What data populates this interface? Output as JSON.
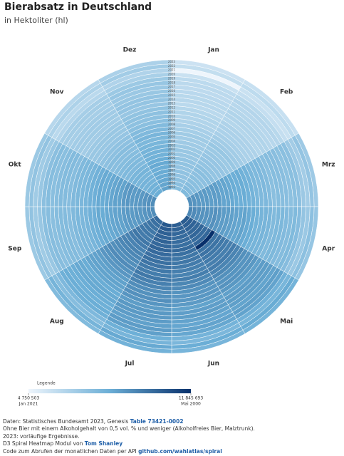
{
  "chart_data": {
    "type": "spiral-heatmap",
    "title": "Bierabsatz in Deutschland",
    "subtitle": "in Hektoliter (hl)",
    "months": [
      "Jan",
      "Feb",
      "Mrz",
      "Apr",
      "Mai",
      "Jun",
      "Jul",
      "Aug",
      "Sep",
      "Okt",
      "Nov",
      "Dez"
    ],
    "years": [
      "1993",
      "1994",
      "1995",
      "1996",
      "1997",
      "1998",
      "1999",
      "2000",
      "2001",
      "2002",
      "2003",
      "2004",
      "2005",
      "2006",
      "2007",
      "2008",
      "2009",
      "2010",
      "2011",
      "2012",
      "2013",
      "2014",
      "2015",
      "2016",
      "2017",
      "2018",
      "2019",
      "2020",
      "2021",
      "2022",
      "2023"
    ],
    "values": [
      [
        7520000,
        7710000,
        9120000,
        9400000,
        10620000,
        10530000,
        10720000,
        10150000,
        9210000,
        9210000,
        8270000,
        8650000
      ],
      [
        7440000,
        7630000,
        9020000,
        9300000,
        10510000,
        10420000,
        10600000,
        10040000,
        9110000,
        9110000,
        8180000,
        8560000
      ],
      [
        7360000,
        7540000,
        8920000,
        9200000,
        10400000,
        10300000,
        10490000,
        9940000,
        9020000,
        9020000,
        8100000,
        8460000
      ],
      [
        7280000,
        7460000,
        8830000,
        9100000,
        10280000,
        10190000,
        10370000,
        9830000,
        8920000,
        8920000,
        8010000,
        8370000
      ],
      [
        7300000,
        7420000,
        8860000,
        9050000,
        10330000,
        10150000,
        10410000,
        9800000,
        8950000,
        8900000,
        8030000,
        8350000
      ],
      [
        7200000,
        7380000,
        8730000,
        9000000,
        10170000,
        10080000,
        10260000,
        9720000,
        8820000,
        8820000,
        7920000,
        8280000
      ],
      [
        7270000,
        7470000,
        8810000,
        9140000,
        10300000,
        10220000,
        10350000,
        9850000,
        8900000,
        8940000,
        8000000,
        8400000
      ],
      [
        7220000,
        7360000,
        8750000,
        8950000,
        11845693,
        10050000,
        10200000,
        9700000,
        8800000,
        8850000,
        7900000,
        8300000
      ],
      [
        7040000,
        7220000,
        8540000,
        8800000,
        9940000,
        9860000,
        10030000,
        9500000,
        8620000,
        8620000,
        7740000,
        8100000
      ],
      [
        7060000,
        7200000,
        8560000,
        8780000,
        9960000,
        9840000,
        10050000,
        9520000,
        8600000,
        8640000,
        7760000,
        8080000
      ],
      [
        6960000,
        7130000,
        8440000,
        8700000,
        9830000,
        9740000,
        9920000,
        9400000,
        8530000,
        8530000,
        7660000,
        8000000
      ],
      [
        6880000,
        7050000,
        8340000,
        8600000,
        9720000,
        9630000,
        9800000,
        9290000,
        8430000,
        8430000,
        7570000,
        7910000
      ],
      [
        6800000,
        6970000,
        8250000,
        8500000,
        9610000,
        9520000,
        9690000,
        9180000,
        8330000,
        8330000,
        7480000,
        7820000
      ],
      [
        6860000,
        7070000,
        8320000,
        8620000,
        9700000,
        9660000,
        9830000,
        9270000,
        8450000,
        8410000,
        7550000,
        7930000
      ],
      [
        6720000,
        6890000,
        8150000,
        8400000,
        9490000,
        9410000,
        9580000,
        9070000,
        8230000,
        8230000,
        7390000,
        7730000
      ],
      [
        6640000,
        6810000,
        8050000,
        8300000,
        9380000,
        9300000,
        9460000,
        8960000,
        8130000,
        8130000,
        7300000,
        7640000
      ],
      [
        6480000,
        6640000,
        7860000,
        8100000,
        9150000,
        9070000,
        9230000,
        8750000,
        7940000,
        7940000,
        7130000,
        7450000
      ],
      [
        6400000,
        6560000,
        7760000,
        8000000,
        9040000,
        8960000,
        9120000,
        8640000,
        7840000,
        7840000,
        7040000,
        7360000
      ],
      [
        6420000,
        6540000,
        7780000,
        7980000,
        9060000,
        8940000,
        9140000,
        8620000,
        7860000,
        7820000,
        7060000,
        7340000
      ],
      [
        6320000,
        6480000,
        7660000,
        7900000,
        8930000,
        8850000,
        9010000,
        8530000,
        7740000,
        7740000,
        6950000,
        7270000
      ],
      [
        6160000,
        6310000,
        7470000,
        7700000,
        8700000,
        8620000,
        8780000,
        8320000,
        7550000,
        7550000,
        6780000,
        7080000
      ],
      [
        6240000,
        6400000,
        7570000,
        7800000,
        8810000,
        8740000,
        8890000,
        8420000,
        7640000,
        7640000,
        6860000,
        7180000
      ],
      [
        6220000,
        6420000,
        7550000,
        7820000,
        8790000,
        8760000,
        8870000,
        8440000,
        7620000,
        7660000,
        6840000,
        7200000
      ],
      [
        6180000,
        6300000,
        7490000,
        7680000,
        8720000,
        8600000,
        8800000,
        8300000,
        7570000,
        7530000,
        6800000,
        7060000
      ],
      [
        6080000,
        6230000,
        7370000,
        7600000,
        8590000,
        8510000,
        8660000,
        8210000,
        7450000,
        7450000,
        6690000,
        6990000
      ],
      [
        6140000,
        6330000,
        7450000,
        7720000,
        8720000,
        8600000,
        8800000,
        8300000,
        7530000,
        7570000,
        6760000,
        7100000
      ],
      [
        6100000,
        6210000,
        7390000,
        7580000,
        8610000,
        8490000,
        8680000,
        8190000,
        7470000,
        7430000,
        6710000,
        6970000
      ],
      [
        5760000,
        5900000,
        6980000,
        7200000,
        8140000,
        8060000,
        8210000,
        7780000,
        7060000,
        7060000,
        6340000,
        6620000
      ],
      [
        4750503,
        5740000,
        6790000,
        7000000,
        7910000,
        7840000,
        7980000,
        7560000,
        6860000,
        6860000,
        6160000,
        6440000
      ],
      [
        5920000,
        6070000,
        7180000,
        7400000,
        8360000,
        8290000,
        8440000,
        7990000,
        7250000,
        7250000,
        6510000,
        6810000
      ],
      [
        5680000,
        5820000,
        6890000,
        7100000,
        8020000,
        7950000,
        8090000,
        7670000,
        6960000,
        6960000,
        6250000,
        6530000
      ]
    ],
    "colors": [
      "#eef5fc",
      "#6baed6",
      "#08306b"
    ],
    "legend": {
      "title": "Legende",
      "min": {
        "value": 4750503,
        "label": "4 750 503",
        "date": "Jan 2021"
      },
      "max": {
        "value": 11845693,
        "label": "11 845 693",
        "date": "Mai 2000"
      }
    },
    "footer": {
      "source": "Daten: Statistisches Bundesamt 2023, Genesis ",
      "source_link": "Table 73421-0002",
      "note": "Ohne Bier mit einem Alkoholgehalt von 0,5 vol. % und weniger (Alkoholfreies Bier, Malztrunk).",
      "note2": "2023: vorläufige Ergebnisse.",
      "credit": "D3 Spiral Heatmap Modul von ",
      "credit_link": "Tom Shanley",
      "code": "Code zum Abrufen der monatlichen Daten per API ",
      "code_link": "github.com/wahlatlas/spiral"
    }
  }
}
